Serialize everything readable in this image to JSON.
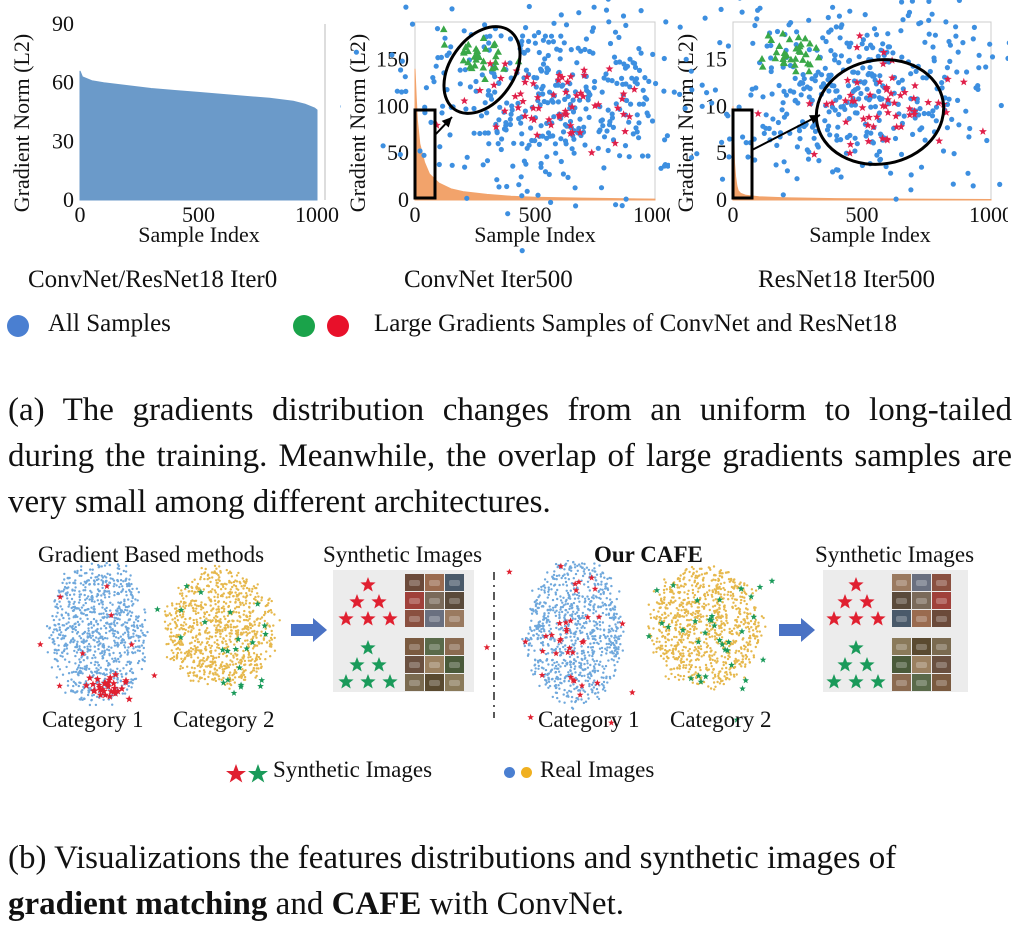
{
  "chart_data": [
    {
      "type": "area",
      "title": "ConvNet/ResNet18 Iter0",
      "xlabel": "Sample Index",
      "ylabel": "Gradient Norm (L2)",
      "xlim": [
        0,
        1000
      ],
      "ylim": [
        0,
        90
      ],
      "xticks": [
        "0",
        "500",
        "1000"
      ],
      "yticks": [
        "0",
        "30",
        "60",
        "90"
      ],
      "x": [
        0,
        10,
        50,
        100,
        200,
        300,
        400,
        500,
        600,
        700,
        800,
        900,
        950,
        990,
        1000
      ],
      "values": [
        66,
        63,
        61,
        60,
        58.5,
        57,
        56,
        55,
        54,
        53,
        52,
        50.5,
        49,
        47,
        46
      ],
      "color": "#6b9ac9"
    },
    {
      "type": "area",
      "title": "ConvNet Iter500",
      "xlabel": "Sample Index",
      "ylabel": "Gradient Norm (L2)",
      "xlim": [
        0,
        1000
      ],
      "ylim": [
        0,
        190
      ],
      "xticks": [
        "0",
        "500",
        "1000"
      ],
      "yticks": [
        "0",
        "50",
        "100",
        "150"
      ],
      "x": [
        0,
        5,
        10,
        20,
        40,
        60,
        100,
        150,
        200,
        300,
        400,
        500,
        700,
        1000
      ],
      "values": [
        140,
        110,
        85,
        60,
        40,
        28,
        18,
        12,
        9,
        6,
        4,
        3,
        2,
        1
      ],
      "color": "#f2a36b"
    },
    {
      "type": "area",
      "title": "ResNet18 Iter500",
      "xlabel": "Sample Index",
      "ylabel": "Gradient Norm (L2)",
      "xlim": [
        0,
        1000
      ],
      "ylim": [
        0,
        19
      ],
      "xticks": [
        "0",
        "500",
        "1000"
      ],
      "yticks": [
        "0",
        "5",
        "10",
        "15"
      ],
      "x": [
        0,
        3,
        6,
        10,
        15,
        20,
        30,
        50,
        100,
        200,
        400,
        700,
        1000
      ],
      "values": [
        10,
        7,
        4,
        2.5,
        1.5,
        1,
        0.7,
        0.5,
        0.35,
        0.25,
        0.15,
        0.1,
        0.05
      ],
      "color": "#f2a36b"
    }
  ],
  "colors": {
    "all_samples": "#4a7fd1",
    "convnet_large": "#1aa34a",
    "resnet_large": "#e8102a",
    "scatter_blue": "#3d8fe0",
    "scatter_green": "#3aa848",
    "scatter_red": "#e0204a",
    "real_blue": "#6fa8dc",
    "real_yellow": "#e6b84c",
    "syn_red": "#e02030",
    "syn_green": "#1a9a5a"
  },
  "legend_a": {
    "all_samples": "All Samples",
    "large_gradients": "Large Gradients Samples of ConvNet and ResNet18"
  },
  "caption_a": "(a) The gradients distribution changes from an uniform to long-tailed during the training. Meanwhile, the overlap of large gradients samples are very small among different architectures.",
  "part_b": {
    "left_title": "Gradient Based methods",
    "right_title": "Our CAFE",
    "synthetic_title": "Synthetic Images",
    "category_1": "Category 1",
    "category_2": "Category 2",
    "legend_synthetic": "Synthetic Images",
    "legend_real": "Real Images"
  },
  "caption_b": {
    "prefix": "(b) Visualizations the features distributions and synthetic images of ",
    "bold_1": "gradient matching",
    "middle": " and ",
    "bold_2": "CAFE",
    "suffix": " with ConvNet."
  }
}
